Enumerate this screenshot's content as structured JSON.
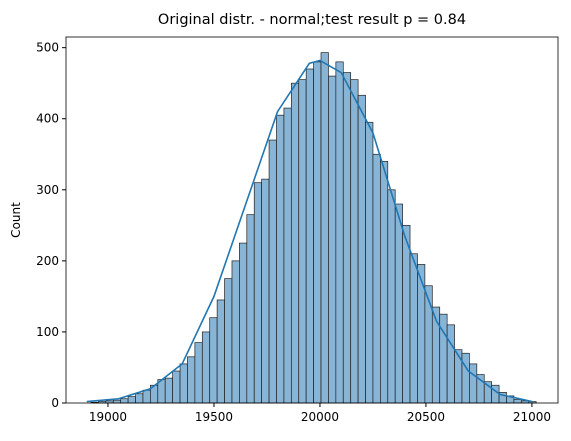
{
  "chart_data": {
    "type": "histogram",
    "title": "Original distr. - normal;test result p = 0.84",
    "ylabel": "Count",
    "bins": [
      18920,
      18955,
      18990,
      19025,
      19060,
      19095,
      19130,
      19165,
      19200,
      19235,
      19270,
      19305,
      19340,
      19375,
      19410,
      19445,
      19480,
      19515,
      19550,
      19585,
      19620,
      19655,
      19690,
      19725,
      19760,
      19795,
      19830,
      19865,
      19900,
      19935,
      19970,
      20005,
      20040,
      20075,
      20110,
      20145,
      20180,
      20215,
      20250,
      20285,
      20320,
      20355,
      20390,
      20425,
      20460,
      20495,
      20530,
      20565,
      20600,
      20635,
      20670,
      20705,
      20740,
      20775,
      20810,
      20845,
      20880,
      20915,
      20950,
      20985,
      21020
    ],
    "values": [
      1,
      2,
      3,
      4,
      6,
      9,
      13,
      18,
      25,
      33,
      35,
      45,
      55,
      65,
      85,
      100,
      120,
      145,
      175,
      200,
      225,
      265,
      310,
      315,
      370,
      405,
      415,
      450,
      455,
      470,
      480,
      493,
      460,
      480,
      465,
      455,
      433,
      395,
      350,
      340,
      300,
      280,
      250,
      210,
      195,
      165,
      135,
      125,
      110,
      75,
      70,
      55,
      40,
      30,
      25,
      15,
      10,
      5,
      3,
      2
    ],
    "color": "#88b4d6",
    "kde": {
      "color": "#1f77b4",
      "x": [
        18900,
        19050,
        19200,
        19350,
        19500,
        19650,
        19800,
        19950,
        20000,
        20100,
        20250,
        20400,
        20550,
        20700,
        20850,
        21000
      ],
      "values": [
        2,
        6,
        20,
        55,
        150,
        280,
        410,
        478,
        482,
        465,
        380,
        235,
        115,
        45,
        12,
        2
      ]
    },
    "xlim": [
      18802,
      21123
    ],
    "xticks": [
      19000,
      19500,
      20000,
      20500,
      21000
    ],
    "ylim": [
      0,
      515
    ],
    "yticks": [
      0,
      100,
      200,
      300,
      400,
      500
    ]
  }
}
